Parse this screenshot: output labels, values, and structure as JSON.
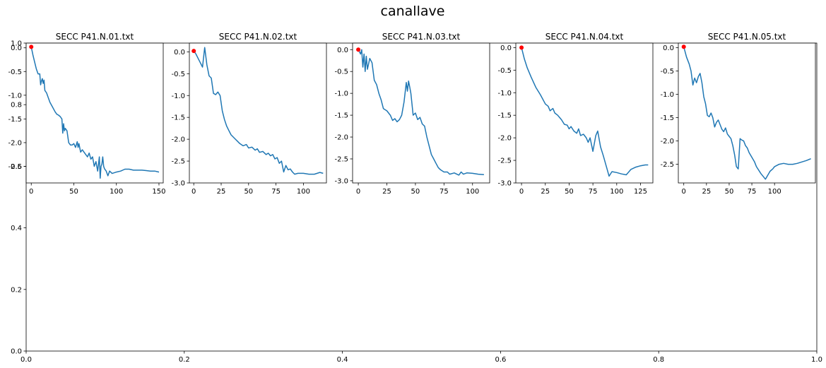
{
  "figure": {
    "title": "canallave",
    "colors": {
      "line": "#1f77b4",
      "start_marker": "#ff0000"
    }
  },
  "chart_data": [
    {
      "type": "line",
      "title": "SECC P41.N.01.txt",
      "xlim": [
        -6,
        155
      ],
      "ylim": [
        -2.85,
        0.1
      ],
      "xticks": [
        0,
        50,
        100,
        150
      ],
      "yticks": [
        0.0,
        -0.5,
        -1.0,
        -1.5,
        -2.0,
        -2.5
      ],
      "ytick_labels": [
        "0.0",
        "-0.5",
        "-1.0",
        "-1.5",
        "-2.0",
        "-2.5"
      ],
      "start_point": [
        0,
        0.02
      ],
      "x": [
        0,
        2,
        4,
        6,
        8,
        10,
        11,
        12,
        13,
        14,
        15,
        16,
        18,
        20,
        22,
        25,
        28,
        30,
        32,
        34,
        36,
        37,
        38,
        39,
        40,
        42,
        44,
        46,
        48,
        50,
        52,
        54,
        55,
        56,
        58,
        60,
        62,
        64,
        66,
        68,
        70,
        72,
        74,
        76,
        78,
        80,
        81,
        82,
        83,
        84,
        85,
        86,
        88,
        90,
        92,
        95,
        100,
        105,
        110,
        115,
        120,
        125,
        130,
        135,
        140,
        145,
        150
      ],
      "y": [
        0.02,
        -0.15,
        -0.3,
        -0.45,
        -0.55,
        -0.55,
        -0.78,
        -0.7,
        -0.65,
        -0.75,
        -0.68,
        -0.9,
        -0.95,
        -1.05,
        -1.15,
        -1.25,
        -1.35,
        -1.4,
        -1.42,
        -1.45,
        -1.5,
        -1.8,
        -1.6,
        -1.75,
        -1.7,
        -1.75,
        -2.0,
        -2.05,
        -2.05,
        -2.02,
        -2.1,
        -1.98,
        -2.1,
        -2.02,
        -2.2,
        -2.15,
        -2.2,
        -2.25,
        -2.3,
        -2.22,
        -2.35,
        -2.3,
        -2.5,
        -2.4,
        -2.6,
        -2.3,
        -2.75,
        -2.5,
        -2.45,
        -2.3,
        -2.5,
        -2.55,
        -2.6,
        -2.7,
        -2.6,
        -2.65,
        -2.62,
        -2.6,
        -2.56,
        -2.56,
        -2.58,
        -2.58,
        -2.58,
        -2.59,
        -2.6,
        -2.6,
        -2.62
      ]
    },
    {
      "type": "line",
      "title": "SECC P41.N.02.txt",
      "xlim": [
        -4,
        121
      ],
      "ylim": [
        -3.0,
        0.2
      ],
      "xticks": [
        0,
        25,
        50,
        75,
        100
      ],
      "yticks": [
        0.0,
        -0.5,
        -1.0,
        -1.5,
        -2.0,
        -2.5,
        -3.0
      ],
      "ytick_labels": [
        "0.0",
        "-0.5",
        "-1.0",
        "-1.5",
        "-2.0",
        "-2.5",
        "-3.0"
      ],
      "start_point": [
        0,
        0.02
      ],
      "x": [
        0,
        2,
        4,
        6,
        8,
        10,
        12,
        14,
        16,
        18,
        20,
        22,
        24,
        26,
        28,
        30,
        32,
        34,
        36,
        38,
        40,
        42,
        45,
        48,
        50,
        53,
        56,
        58,
        60,
        63,
        66,
        68,
        70,
        72,
        74,
        76,
        78,
        80,
        82,
        84,
        86,
        88,
        90,
        92,
        95,
        100,
        105,
        110,
        115,
        118
      ],
      "y": [
        0.02,
        -0.05,
        -0.15,
        -0.25,
        -0.35,
        0.1,
        -0.3,
        -0.55,
        -0.6,
        -0.95,
        -0.98,
        -0.92,
        -1.0,
        -1.35,
        -1.55,
        -1.7,
        -1.8,
        -1.9,
        -1.95,
        -2.0,
        -2.05,
        -2.1,
        -2.15,
        -2.12,
        -2.2,
        -2.18,
        -2.25,
        -2.22,
        -2.3,
        -2.28,
        -2.35,
        -2.32,
        -2.38,
        -2.35,
        -2.45,
        -2.42,
        -2.55,
        -2.5,
        -2.75,
        -2.6,
        -2.7,
        -2.68,
        -2.75,
        -2.8,
        -2.78,
        -2.78,
        -2.8,
        -2.8,
        -2.76,
        -2.78
      ]
    },
    {
      "type": "line",
      "title": "SECC P41.N.03.txt",
      "xlim": [
        -5,
        115
      ],
      "ylim": [
        -3.05,
        0.15
      ],
      "xticks": [
        0,
        25,
        50,
        75,
        100
      ],
      "yticks": [
        0.0,
        -0.5,
        -1.0,
        -1.5,
        -2.0,
        -2.5,
        -3.0
      ],
      "ytick_labels": [
        "0.0",
        "-0.5",
        "-1.0",
        "-1.5",
        "-2.0",
        "-2.5",
        "-3.0"
      ],
      "start_point": [
        0,
        0.0
      ],
      "x": [
        0,
        2,
        3,
        4,
        5,
        6,
        7,
        8,
        10,
        12,
        14,
        16,
        18,
        20,
        22,
        25,
        28,
        30,
        32,
        34,
        36,
        38,
        40,
        42,
        43,
        44,
        45,
        46,
        48,
        50,
        52,
        54,
        56,
        58,
        60,
        62,
        64,
        66,
        68,
        70,
        72,
        75,
        78,
        80,
        84,
        88,
        90,
        92,
        95,
        100,
        105,
        110
      ],
      "y": [
        0.0,
        -0.1,
        0.0,
        -0.4,
        -0.1,
        -0.5,
        -0.15,
        -0.45,
        -0.2,
        -0.3,
        -0.7,
        -0.8,
        -1.0,
        -1.15,
        -1.35,
        -1.4,
        -1.5,
        -1.62,
        -1.58,
        -1.65,
        -1.6,
        -1.5,
        -1.2,
        -0.75,
        -0.95,
        -0.72,
        -0.85,
        -1.0,
        -1.5,
        -1.45,
        -1.6,
        -1.55,
        -1.7,
        -1.75,
        -2.0,
        -2.2,
        -2.4,
        -2.5,
        -2.6,
        -2.7,
        -2.75,
        -2.8,
        -2.8,
        -2.85,
        -2.82,
        -2.87,
        -2.8,
        -2.85,
        -2.82,
        -2.83,
        -2.85,
        -2.86
      ]
    },
    {
      "type": "line",
      "title": "SECC P41.N.04.txt",
      "xlim": [
        -6,
        138
      ],
      "ylim": [
        -3.0,
        0.1
      ],
      "xticks": [
        0,
        25,
        50,
        75,
        100,
        125
      ],
      "yticks": [
        0.0,
        -0.5,
        -1.0,
        -1.5,
        -2.0,
        -2.5,
        -3.0
      ],
      "ytick_labels": [
        "0.0",
        "-0.5",
        "-1.0",
        "-1.5",
        "-2.0",
        "-2.5",
        "-3.0"
      ],
      "start_point": [
        0,
        0.0
      ],
      "x": [
        0,
        3,
        6,
        10,
        15,
        20,
        25,
        28,
        30,
        33,
        35,
        38,
        40,
        42,
        45,
        48,
        50,
        52,
        55,
        58,
        60,
        62,
        65,
        68,
        70,
        72,
        75,
        78,
        80,
        83,
        86,
        88,
        90,
        92,
        95,
        100,
        105,
        110,
        115,
        120,
        125,
        130,
        133
      ],
      "y": [
        0.0,
        -0.25,
        -0.45,
        -0.65,
        -0.88,
        -1.05,
        -1.25,
        -1.3,
        -1.4,
        -1.35,
        -1.45,
        -1.5,
        -1.55,
        -1.6,
        -1.7,
        -1.72,
        -1.8,
        -1.75,
        -1.85,
        -1.9,
        -1.8,
        -1.95,
        -1.92,
        -2.0,
        -2.1,
        -2.0,
        -2.3,
        -1.95,
        -1.85,
        -2.2,
        -2.4,
        -2.55,
        -2.7,
        -2.85,
        -2.75,
        -2.77,
        -2.8,
        -2.82,
        -2.7,
        -2.65,
        -2.62,
        -2.6,
        -2.6
      ]
    },
    {
      "type": "line",
      "title": "SECC P41.N.05.txt",
      "xlim": [
        -6,
        145
      ],
      "ylim": [
        -2.9,
        0.1
      ],
      "xticks": [
        0,
        25,
        50,
        75,
        100
      ],
      "yticks": [
        0.0,
        -0.5,
        -1.0,
        -1.5,
        -2.0,
        -2.5
      ],
      "ytick_labels": [
        "0.0",
        "-0.5",
        "-1.0",
        "-1.5",
        "-2.0",
        "-2.5"
      ],
      "start_point": [
        0,
        0.02
      ],
      "x": [
        0,
        3,
        6,
        8,
        10,
        12,
        14,
        16,
        18,
        20,
        22,
        24,
        26,
        28,
        30,
        32,
        34,
        36,
        38,
        40,
        42,
        44,
        46,
        48,
        50,
        52,
        54,
        56,
        58,
        60,
        62,
        64,
        66,
        68,
        70,
        72,
        75,
        78,
        80,
        85,
        90,
        95,
        98,
        100,
        105,
        110,
        115,
        120,
        125,
        130,
        135,
        140
      ],
      "y": [
        0.02,
        -0.2,
        -0.35,
        -0.5,
        -0.8,
        -0.65,
        -0.75,
        -0.62,
        -0.55,
        -0.75,
        -1.05,
        -1.2,
        -1.45,
        -1.48,
        -1.4,
        -1.5,
        -1.7,
        -1.6,
        -1.55,
        -1.65,
        -1.75,
        -1.8,
        -1.72,
        -1.85,
        -1.9,
        -1.95,
        -2.1,
        -2.3,
        -2.55,
        -2.6,
        -1.95,
        -1.98,
        -2.0,
        -2.1,
        -2.15,
        -2.25,
        -2.35,
        -2.45,
        -2.55,
        -2.7,
        -2.82,
        -2.65,
        -2.6,
        -2.55,
        -2.5,
        -2.48,
        -2.5,
        -2.5,
        -2.48,
        -2.45,
        -2.42,
        -2.38
      ]
    },
    {
      "type": "empty",
      "xlim": [
        0,
        1
      ],
      "ylim": [
        0,
        1
      ],
      "xticks": [
        0,
        0.2,
        0.4,
        0.6,
        0.8,
        1.0
      ],
      "xtick_labels": [
        "0.0",
        "0.2",
        "0.4",
        "0.6",
        "0.8",
        "1.0"
      ],
      "yticks": [
        0,
        0.2,
        0.4,
        0.6,
        0.8,
        1.0
      ],
      "ytick_labels": [
        "0.0",
        "0.2",
        "0.4",
        "0.6",
        "0.8",
        "1.0"
      ]
    }
  ]
}
